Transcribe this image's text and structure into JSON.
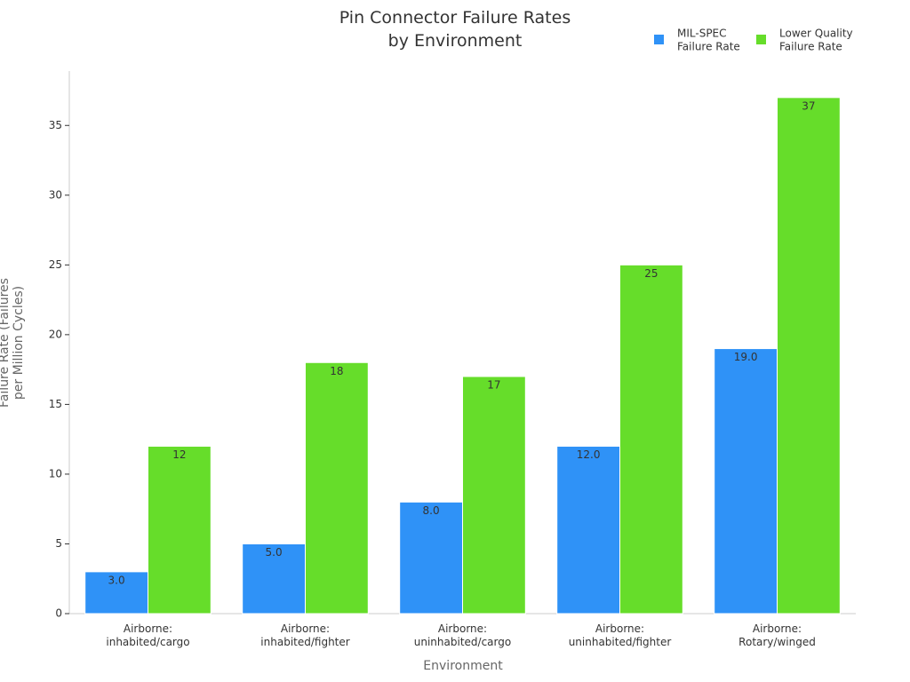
{
  "chart_data": {
    "type": "bar",
    "title": "Pin Connector Failure Rates\nby Environment",
    "x_label": "Environment",
    "y_label": "Failure Rate (Failures\nper Million Cycles)",
    "categories": [
      "Airborne:\ninhabited/cargo",
      "Airborne:\ninhabited/fighter",
      "Airborne:\nuninhabited/cargo",
      "Airborne:\nuninhabited/fighter",
      "Airborne:\nRotary/winged"
    ],
    "series": [
      {
        "name": "MIL-SPEC\nFailure Rate",
        "color": "#2f92f7",
        "values": [
          3,
          5,
          8,
          12,
          19
        ],
        "value_labels": [
          "3.0",
          "5.0",
          "8.0",
          "12.0",
          "19.0"
        ]
      },
      {
        "name": "Lower Quality\nFailure Rate",
        "color": "#66dd2a",
        "values": [
          12,
          18,
          17,
          25,
          37
        ]
      }
    ],
    "ylim": [
      0,
      38.9
    ],
    "yticks": [
      0,
      5,
      10,
      15,
      20,
      25,
      30,
      35
    ],
    "legend": "top-right"
  }
}
